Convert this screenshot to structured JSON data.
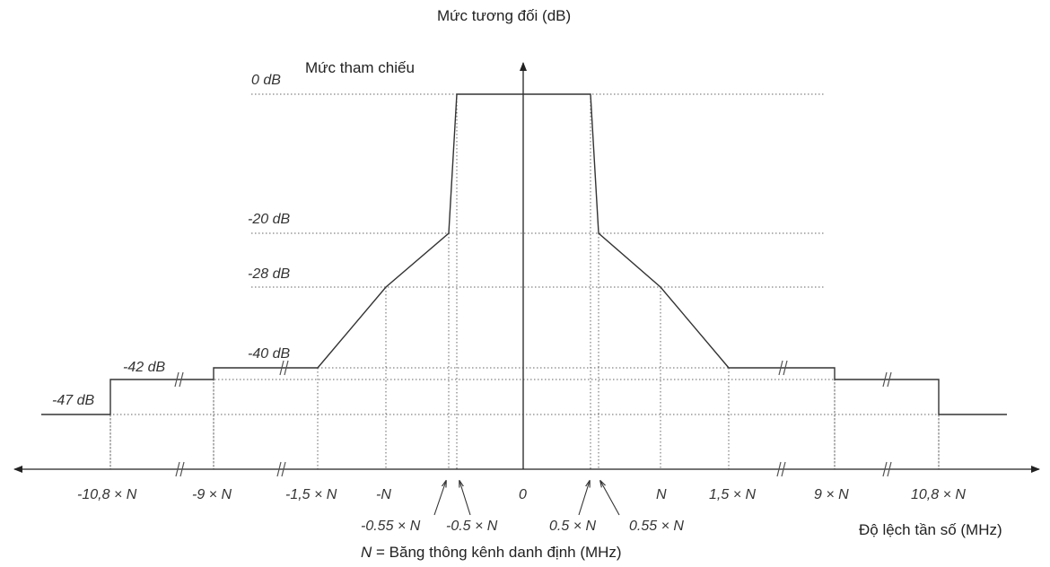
{
  "texts": {
    "y_title": "Mức tương đối (dB)",
    "ref_label": "Mức tham chiếu",
    "x_title": "Độ lệch tần số (MHz)",
    "footnote_var": "N",
    "footnote_rest": " = Băng thông kênh danh định (MHz)"
  },
  "levels": [
    {
      "label": "0 dB",
      "db": 0
    },
    {
      "label": "-20 dB",
      "db": -20
    },
    {
      "label": "-28 dB",
      "db": -28
    },
    {
      "label": "-40 dB",
      "db": -40
    },
    {
      "label": "-42 dB",
      "db": -42
    },
    {
      "label": "-47 dB",
      "db": -47
    }
  ],
  "x_ticks": [
    {
      "label": "-10,8 × N",
      "value": -10.8
    },
    {
      "label": "-9 × N",
      "value": -9
    },
    {
      "label": "-1,5 × N",
      "value": -1.5
    },
    {
      "label": "-N",
      "value": -1
    },
    {
      "label": "0",
      "value": 0
    },
    {
      "label": "N",
      "value": 1
    },
    {
      "label": "1,5 × N",
      "value": 1.5
    },
    {
      "label": "9 × N",
      "value": 9
    },
    {
      "label": "10,8 × N",
      "value": 10.8
    }
  ],
  "x_ticks_low": [
    {
      "label": "-0.55 × N",
      "value": -0.55
    },
    {
      "label": "-0.5 × N",
      "value": -0.5
    },
    {
      "label": "0.5 × N",
      "value": 0.5
    },
    {
      "label": "0.55 × N",
      "value": 0.55
    }
  ],
  "mask": [
    {
      "x": -10.8,
      "db": -47
    },
    {
      "x": -10.8,
      "db": -42
    },
    {
      "x": -9,
      "db": -42
    },
    {
      "x": -9,
      "db": -40
    },
    {
      "x": -1.5,
      "db": -40
    },
    {
      "x": -1,
      "db": -28
    },
    {
      "x": -0.55,
      "db": -20
    },
    {
      "x": -0.5,
      "db": 0
    },
    {
      "x": 0.5,
      "db": 0
    },
    {
      "x": 0.55,
      "db": -20
    },
    {
      "x": 1,
      "db": -28
    },
    {
      "x": 1.5,
      "db": -40
    },
    {
      "x": 9,
      "db": -40
    },
    {
      "x": 9,
      "db": -42
    },
    {
      "x": 10.8,
      "db": -42
    },
    {
      "x": 10.8,
      "db": -47
    }
  ]
}
